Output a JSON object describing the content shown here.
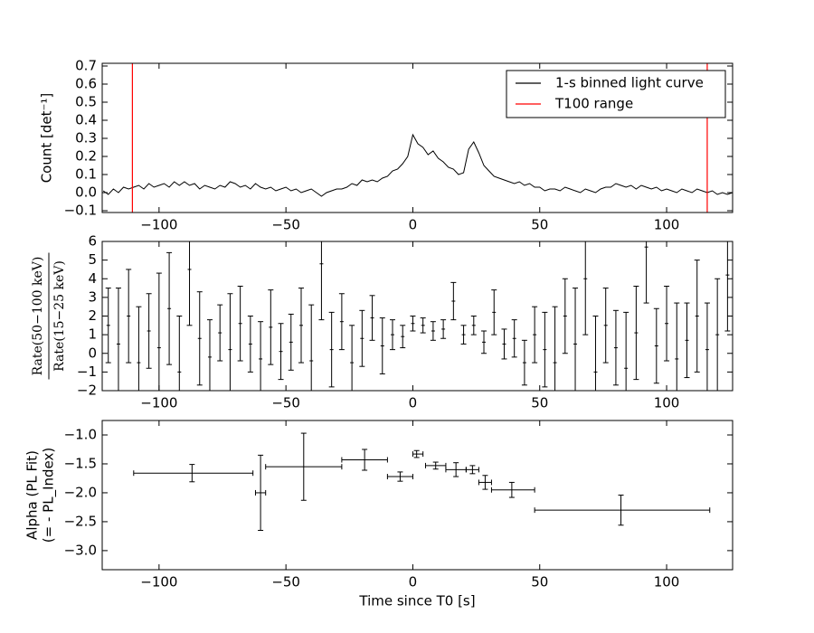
{
  "chart_data": [
    {
      "type": "line",
      "ylabel": "Count [det⁻¹]",
      "x": [
        -122,
        -120,
        -118,
        -116,
        -114,
        -112,
        -110,
        -108,
        -106,
        -104,
        -102,
        -100,
        -98,
        -96,
        -94,
        -92,
        -90,
        -88,
        -86,
        -84,
        -82,
        -80,
        -78,
        -76,
        -74,
        -72,
        -70,
        -68,
        -66,
        -64,
        -62,
        -60,
        -58,
        -56,
        -54,
        -52,
        -50,
        -48,
        -46,
        -44,
        -42,
        -40,
        -38,
        -36,
        -34,
        -32,
        -30,
        -28,
        -26,
        -24,
        -22,
        -20,
        -18,
        -16,
        -14,
        -12,
        -10,
        -8,
        -6,
        -4,
        -2,
        0,
        2,
        4,
        6,
        8,
        10,
        12,
        14,
        16,
        18,
        20,
        22,
        24,
        26,
        28,
        30,
        32,
        34,
        36,
        38,
        40,
        42,
        44,
        46,
        48,
        50,
        52,
        54,
        56,
        58,
        60,
        62,
        64,
        66,
        68,
        70,
        72,
        74,
        76,
        78,
        80,
        82,
        84,
        86,
        88,
        90,
        92,
        94,
        96,
        98,
        100,
        102,
        104,
        106,
        108,
        110,
        112,
        114,
        116,
        118,
        120,
        122,
        124,
        126
      ],
      "series": [
        {
          "name": "1-s binned light curve",
          "color": "#000000",
          "values": [
            0.01,
            -0.01,
            0.02,
            0.0,
            0.03,
            0.02,
            0.03,
            0.04,
            0.02,
            0.05,
            0.03,
            0.04,
            0.05,
            0.03,
            0.06,
            0.04,
            0.06,
            0.04,
            0.05,
            0.02,
            0.04,
            0.03,
            0.02,
            0.04,
            0.03,
            0.06,
            0.05,
            0.03,
            0.04,
            0.02,
            0.05,
            0.03,
            0.02,
            0.03,
            0.01,
            0.02,
            0.03,
            0.01,
            0.02,
            0.0,
            0.01,
            0.02,
            0.0,
            -0.02,
            0.0,
            0.01,
            0.02,
            0.02,
            0.03,
            0.05,
            0.04,
            0.07,
            0.06,
            0.07,
            0.06,
            0.08,
            0.09,
            0.12,
            0.13,
            0.16,
            0.2,
            0.32,
            0.27,
            0.25,
            0.21,
            0.23,
            0.19,
            0.17,
            0.14,
            0.13,
            0.1,
            0.11,
            0.24,
            0.28,
            0.22,
            0.15,
            0.12,
            0.09,
            0.08,
            0.07,
            0.06,
            0.05,
            0.06,
            0.04,
            0.05,
            0.03,
            0.03,
            0.01,
            0.02,
            0.02,
            0.01,
            0.03,
            0.02,
            0.01,
            0.0,
            0.02,
            0.01,
            0.0,
            0.02,
            0.03,
            0.03,
            0.05,
            0.04,
            0.03,
            0.04,
            0.02,
            0.04,
            0.03,
            0.02,
            0.03,
            0.01,
            0.02,
            0.01,
            0.0,
            0.02,
            0.01,
            0.0,
            0.02,
            0.01,
            0.0,
            0.01,
            -0.01,
            0.0,
            -0.01,
            0.0
          ]
        },
        {
          "name": "T100 range",
          "color": "#ff0000",
          "vlines": [
            -110.5,
            116
          ]
        }
      ],
      "xlim": [
        -122.4,
        126
      ],
      "xticks": [
        {
          "value": -100,
          "label": "−100"
        },
        {
          "value": -50,
          "label": "−50"
        },
        0,
        50,
        100
      ],
      "ylim": [
        -0.11,
        0.715
      ],
      "yticks": [
        {
          "value": -0.1,
          "label": "−0.1"
        },
        {
          "value": 0,
          "label": "0.0"
        },
        0.1,
        0.2,
        0.3,
        0.4,
        0.5,
        0.6,
        0.7
      ],
      "legend": "upper right"
    },
    {
      "type": "errorbar",
      "ylabel_numerator": "Rate(50−100 keV)",
      "ylabel_denominator": "Rate(15−25 keV)",
      "x": [
        -120,
        -116,
        -112,
        -108,
        -104,
        -100,
        -96,
        -92,
        -88,
        -84,
        -80,
        -76,
        -72,
        -68,
        -64,
        -60,
        -56,
        -52,
        -48,
        -44,
        -40,
        -36,
        -32,
        -28,
        -24,
        -20,
        -16,
        -12,
        -8,
        -4,
        0,
        4,
        8,
        12,
        16,
        20,
        24,
        28,
        32,
        36,
        40,
        44,
        48,
        52,
        56,
        60,
        64,
        68,
        72,
        76,
        80,
        84,
        88,
        92,
        96,
        100,
        104,
        108,
        112,
        116,
        120,
        124
      ],
      "values": [
        1.5,
        0.5,
        2.0,
        -0.5,
        1.2,
        0.3,
        2.4,
        -1.0,
        4.5,
        0.8,
        -0.2,
        1.1,
        0.2,
        1.6,
        0.5,
        -0.3,
        1.4,
        0.1,
        0.6,
        1.5,
        -0.4,
        4.8,
        0.2,
        1.7,
        -0.5,
        0.8,
        1.9,
        0.4,
        1.0,
        0.9,
        1.6,
        1.5,
        1.2,
        1.3,
        2.8,
        1.0,
        1.5,
        0.6,
        2.2,
        0.5,
        0.8,
        -0.5,
        1.0,
        0.2,
        -0.5,
        2.0,
        0.5,
        4.0,
        -1.0,
        1.5,
        0.3,
        -0.8,
        1.1,
        5.7,
        0.4,
        1.6,
        -0.3,
        0.7,
        2.0,
        0.2,
        1.0,
        4.2
      ],
      "errors": [
        2,
        3,
        2.5,
        3,
        2,
        4,
        3,
        3,
        3,
        2.5,
        2,
        1.5,
        3,
        2,
        1.5,
        2,
        2,
        1.5,
        1.5,
        2,
        3,
        3,
        2,
        1.5,
        2,
        1.5,
        1.2,
        1.5,
        0.8,
        0.6,
        0.4,
        0.4,
        0.5,
        0.5,
        1,
        0.5,
        0.5,
        0.6,
        1.2,
        0.8,
        1,
        1.2,
        1.5,
        2,
        3,
        2,
        3,
        3,
        3,
        2,
        2,
        3,
        2.5,
        3,
        2,
        2,
        3,
        2,
        3,
        2.5,
        3,
        3
      ],
      "color": "#000000",
      "xlim": [
        -122.4,
        126
      ],
      "xticks": [
        {
          "value": -100,
          "label": "−100"
        },
        {
          "value": -50,
          "label": "−50"
        },
        0,
        50,
        100
      ],
      "ylim": [
        -2,
        6
      ],
      "yticks": [
        {
          "value": -2,
          "label": "−2"
        },
        {
          "value": -1,
          "label": "−1"
        },
        0,
        1,
        2,
        3,
        4,
        5,
        6
      ]
    },
    {
      "type": "errorbar",
      "ylabel": [
        "Alpha (PL Fit)",
        "(= - PL_Index)"
      ],
      "xlabel": "Time since T0 [s]",
      "x": [
        -87,
        -60,
        -43,
        -19,
        -5,
        1.5,
        9,
        17,
        23.5,
        28.5,
        39,
        82
      ],
      "x_lo": [
        -110,
        -62,
        -58,
        -28,
        -10,
        0,
        5,
        13,
        21,
        26,
        31,
        48
      ],
      "x_hi": [
        -63,
        -58,
        -28,
        -10,
        0,
        4,
        13,
        21,
        26,
        31,
        48,
        117
      ],
      "values": [
        -1.66,
        -2.0,
        -1.55,
        -1.43,
        -1.72,
        -1.33,
        -1.53,
        -1.6,
        -1.6,
        -1.82,
        -1.95,
        -2.3
      ],
      "errors": [
        0.15,
        0.65,
        0.58,
        0.18,
        0.08,
        0.06,
        0.06,
        0.12,
        0.07,
        0.12,
        0.13,
        0.26
      ],
      "color": "#000000",
      "xlim": [
        -122.4,
        126
      ],
      "xticks": [
        {
          "value": -100,
          "label": "−100"
        },
        {
          "value": -50,
          "label": "−50"
        },
        0,
        50,
        100
      ],
      "ylim": [
        -3.33,
        -0.75
      ],
      "yticks": [
        {
          "value": -1.0,
          "label": "−1.0"
        },
        {
          "value": -1.5,
          "label": "−1.5"
        },
        {
          "value": -2.0,
          "label": "−2.0"
        },
        {
          "value": -2.5,
          "label": "−2.5"
        },
        {
          "value": -3.0,
          "label": "−3.0"
        }
      ]
    }
  ]
}
